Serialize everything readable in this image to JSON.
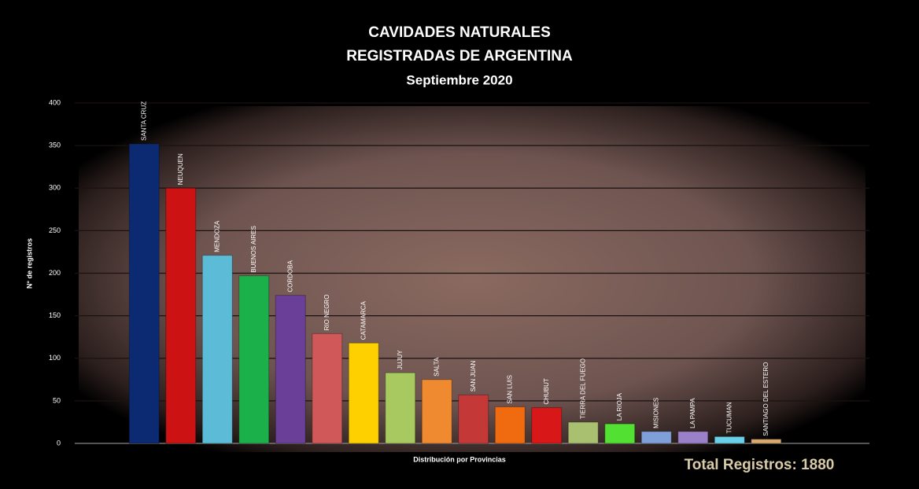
{
  "chart_data": {
    "type": "bar",
    "title": [
      "CAVIDADES NATURALES",
      "REGISTRADAS DE ARGENTINA"
    ],
    "subtitle": "Septiembre 2020",
    "y_label": "N° de registros",
    "x_label": "Distribución por Provincias",
    "annotation": "Total Registros: 1880",
    "categories": [
      "SANTA CRUZ",
      "NEUQUEN",
      "MENDOZA",
      "BUENOS AIRES",
      "CORDOBA",
      "RIO NEGRO",
      "CATAMARCA",
      "JUJUY",
      "SALTA",
      "SAN JUAN",
      "SAN LUIS",
      "CHUBUT",
      "TIERRA DEL FUEGO",
      "LA RIOJA",
      "MISIONES",
      "LA PAMPA",
      "TUCUMAN",
      "SANTIAGO DEL ESTERO"
    ],
    "values": [
      352,
      300,
      221,
      197,
      174,
      129,
      118,
      83,
      75,
      57,
      43,
      42,
      25,
      23,
      14,
      14,
      8,
      5
    ],
    "colors": [
      "#0c2a72",
      "#cc1212",
      "#5cbcd8",
      "#1cb04a",
      "#6a3f98",
      "#d05858",
      "#ffd000",
      "#a8c860",
      "#f08a30",
      "#c43838",
      "#f06a10",
      "#d81818",
      "#a8c070",
      "#52e032",
      "#7f9fd8",
      "#9a80c8",
      "#6ad0e8",
      "#d8a870"
    ],
    "ylim": [
      0,
      400
    ],
    "yticks": [
      0,
      50,
      100,
      150,
      200,
      250,
      300,
      350,
      400
    ],
    "grid": true
  }
}
